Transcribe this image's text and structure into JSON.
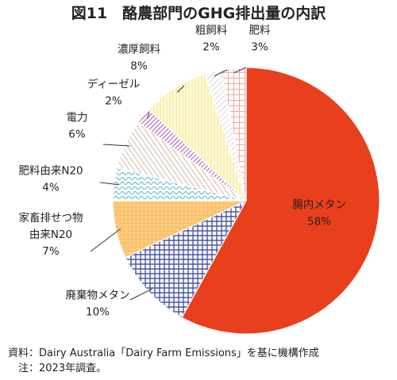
{
  "title": "図11　酪農部門のGHG排出量の内訳",
  "chart_data": {
    "type": "pie",
    "title": "図11　酪農部門のGHG排出量の内訳",
    "unit": "%",
    "slices": [
      {
        "name": "腸内メタン",
        "label_lines": [
          "腸内メタン"
        ],
        "value": 58,
        "value_label": "58%",
        "color": "#e8401c"
      },
      {
        "name": "廃棄物メタン",
        "label_lines": [
          "廃棄物メタン"
        ],
        "value": 10,
        "value_label": "10%",
        "color": "#4a57a6"
      },
      {
        "name": "家畜排せつ物由来N20",
        "label_lines": [
          "家畜排せつ物",
          "由来N20"
        ],
        "value": 7,
        "value_label": "7%",
        "color": "#fbc97a"
      },
      {
        "name": "肥料由来N20",
        "label_lines": [
          "肥料由来N20"
        ],
        "value": 4,
        "value_label": "4%",
        "color": "#4fb3c8"
      },
      {
        "name": "電力",
        "label_lines": [
          "電力"
        ],
        "value": 6,
        "value_label": "6%",
        "color": "#c9a48a"
      },
      {
        "name": "ディーゼル",
        "label_lines": [
          "ディーゼル"
        ],
        "value": 2,
        "value_label": "2%",
        "color": "#b04fb4"
      },
      {
        "name": "濃厚飼料",
        "label_lines": [
          "濃厚飼料"
        ],
        "value": 8,
        "value_label": "8%",
        "color": "#f5ec9a"
      },
      {
        "name": "粗飼料",
        "label_lines": [
          "粗飼料"
        ],
        "value": 2,
        "value_label": "2%",
        "color": "#b0b0b0"
      },
      {
        "name": "肥料",
        "label_lines": [
          "肥料"
        ],
        "value": 3,
        "value_label": "3%",
        "color": "#f2a6a6"
      }
    ]
  },
  "notes": {
    "source": "資料：Dairy Australia「Dairy Farm Emissions」を基に機構作成",
    "note": "　注：2023年調査。"
  }
}
